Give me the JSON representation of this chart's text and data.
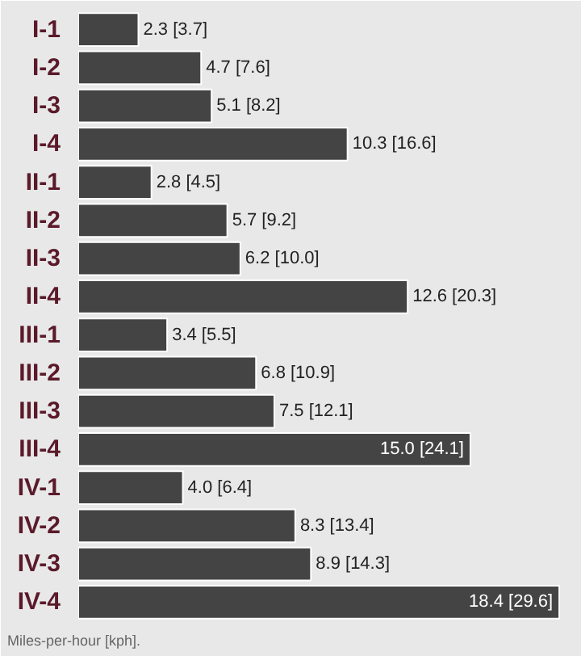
{
  "chart_data": {
    "type": "bar",
    "orientation": "horizontal",
    "categories": [
      "I-1",
      "I-2",
      "I-3",
      "I-4",
      "II-1",
      "II-2",
      "II-3",
      "II-4",
      "III-1",
      "III-2",
      "III-3",
      "III-4",
      "IV-1",
      "IV-2",
      "IV-3",
      "IV-4"
    ],
    "values": [
      2.3,
      4.7,
      5.1,
      10.3,
      2.8,
      5.7,
      6.2,
      12.6,
      3.4,
      6.8,
      7.5,
      15.0,
      4.0,
      8.3,
      8.9,
      18.4
    ],
    "value_labels": [
      "2.3 [3.7]",
      "4.7 [7.6]",
      "5.1 [8.2]",
      "10.3 [16.6]",
      "2.8 [4.5]",
      "5.7 [9.2]",
      "6.2 [10.0]",
      "12.6 [20.3]",
      "3.4 [5.5]",
      "6.8 [10.9]",
      "7.5 [12.1]",
      "15.0 [24.1]",
      "4.0 [6.4]",
      "8.3 [13.4]",
      "8.9 [14.3]",
      "18.4 [29.6]"
    ],
    "color": "#444444",
    "annotations": [
      "Miles-per-hour [kph]."
    ]
  }
}
